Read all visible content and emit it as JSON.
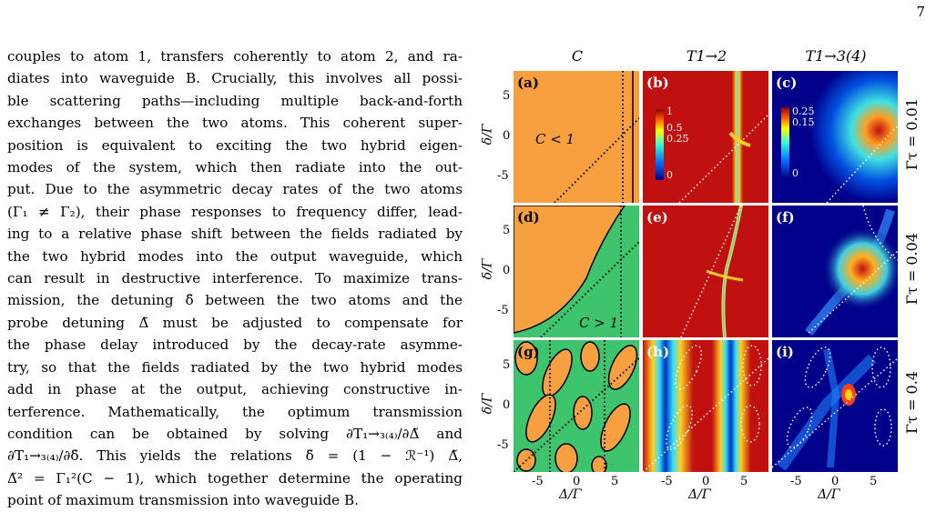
{
  "page": {
    "number": "7"
  },
  "body_text": [
    "couples to atom 1, transfers coherently to atom 2, and ra-",
    "diates into waveguide B. Crucially, this involves all possi-",
    "ble scattering paths—including multiple back-and-forth",
    "exchanges between the two atoms. This coherent super-",
    "position is equivalent to exciting the two hybrid eigen-",
    "modes of the system, which then radiate into the out-",
    "put. Due to the asymmetric decay rates of the two atoms",
    "(Γ₁ ≠ Γ₂), their phase responses to frequency differ, lead-",
    "ing to a relative phase shift between the fields radiated by",
    "the two hybrid modes into the output waveguide, which",
    "can result in destructive interference. To maximize trans-",
    "mission, the detuning δ̃ between the two atoms and the",
    "probe detuning Δ̃ must be adjusted to compensate for",
    "the phase delay introduced by the decay-rate asymme-",
    "try, so that the fields radiated by the two hybrid modes",
    "add in phase at the output, achieving constructive in-",
    "terference. Mathematically, the optimum transmission",
    "condition can be obtained by solving ∂T₁→₃₍₄₎/∂Δ̃ and",
    "∂T₁→₃₍₄₎/∂δ̃. This yields the relations δ̃ = (1 − ℛ⁻¹) Δ̃,",
    "Δ̃² = Γ₁²(C − 1), which together determine the operating",
    "point of maximum transmission into waveguide B."
  ],
  "figure": {
    "column_titles": [
      "C",
      "T1→2",
      "T1→3(4)"
    ],
    "row_labels": [
      "Γτ = 0.01",
      "Γτ = 0.04",
      "Γτ = 0.4"
    ],
    "panel_labels": [
      "(a)",
      "(b)",
      "(c)",
      "(d)",
      "(e)",
      "(f)",
      "(g)",
      "(h)",
      "(i)"
    ],
    "y_axis_title": "δ/Γ",
    "x_axis_title": "Δ/Γ",
    "y_ticks": [
      "5",
      "0",
      "-5"
    ],
    "x_ticks": [
      "-5",
      "0",
      "5"
    ],
    "region_labels": {
      "a": "C < 1",
      "d": "C > 1"
    },
    "colorbar_b": [
      "1",
      "0.5",
      "0.25",
      "0"
    ],
    "colorbar_c": [
      "0.25",
      "0.15",
      "0"
    ],
    "colors": {
      "c_less_1": "#f8a040",
      "c_greater_1": "#3dc46c",
      "high": "#c01010",
      "low": "#00008a"
    }
  }
}
